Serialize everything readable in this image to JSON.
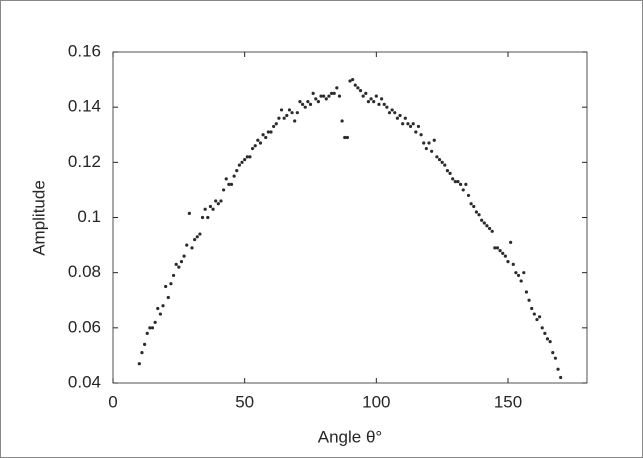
{
  "chart_data": {
    "type": "scatter",
    "xlabel": "Angle θ°",
    "ylabel": "Amplitude",
    "color": "#2b2b2b",
    "xlim": [
      0,
      180
    ],
    "xticks": [
      0,
      50,
      100,
      150
    ],
    "ylim": [
      0.04,
      0.16
    ],
    "yticks": [
      0.04,
      0.06,
      0.08,
      0.1,
      0.12,
      0.14,
      0.16
    ],
    "x": [
      10,
      11,
      12,
      13,
      14,
      15,
      16,
      17,
      18,
      19,
      20,
      21,
      22,
      23,
      24,
      25,
      26,
      27,
      28,
      29,
      30,
      31,
      32,
      33,
      34,
      35,
      36,
      37,
      38,
      39,
      40,
      41,
      42,
      43,
      44,
      45,
      46,
      47,
      48,
      49,
      50,
      51,
      52,
      53,
      54,
      55,
      56,
      57,
      58,
      59,
      60,
      61,
      62,
      63,
      64,
      65,
      66,
      67,
      68,
      69,
      70,
      71,
      72,
      73,
      74,
      75,
      76,
      77,
      78,
      79,
      80,
      81,
      82,
      83,
      84,
      85,
      86,
      87,
      88,
      89,
      90,
      91,
      92,
      93,
      94,
      95,
      96,
      97,
      98,
      99,
      100,
      101,
      102,
      103,
      104,
      105,
      106,
      107,
      108,
      109,
      110,
      111,
      112,
      113,
      114,
      115,
      116,
      117,
      118,
      119,
      120,
      121,
      122,
      123,
      124,
      125,
      126,
      127,
      128,
      129,
      130,
      131,
      132,
      133,
      134,
      135,
      136,
      137,
      138,
      139,
      140,
      141,
      142,
      143,
      144,
      145,
      146,
      147,
      148,
      149,
      150,
      151,
      152,
      153,
      154,
      155,
      156,
      157,
      158,
      159,
      160,
      161,
      162,
      163,
      164,
      165,
      166,
      167,
      168,
      169,
      170
    ],
    "y": [
      0.047,
      0.051,
      0.054,
      0.058,
      0.06,
      0.06,
      0.062,
      0.067,
      0.065,
      0.068,
      0.075,
      0.071,
      0.076,
      0.079,
      0.083,
      0.082,
      0.084,
      0.086,
      0.09,
      0.1015,
      0.089,
      0.092,
      0.093,
      0.094,
      0.1,
      0.103,
      0.1,
      0.104,
      0.103,
      0.106,
      0.105,
      0.106,
      0.11,
      0.114,
      0.112,
      0.112,
      0.115,
      0.117,
      0.119,
      0.12,
      0.121,
      0.122,
      0.122,
      0.125,
      0.126,
      0.128,
      0.127,
      0.13,
      0.129,
      0.131,
      0.131,
      0.133,
      0.134,
      0.136,
      0.139,
      0.136,
      0.137,
      0.139,
      0.138,
      0.135,
      0.138,
      0.142,
      0.141,
      0.14,
      0.142,
      0.141,
      0.145,
      0.143,
      0.142,
      0.144,
      0.144,
      0.143,
      0.144,
      0.145,
      0.145,
      0.147,
      0.144,
      0.135,
      0.129,
      0.129,
      0.1495,
      0.15,
      0.148,
      0.147,
      0.146,
      0.144,
      0.145,
      0.142,
      0.143,
      0.142,
      0.144,
      0.141,
      0.143,
      0.141,
      0.14,
      0.138,
      0.139,
      0.138,
      0.136,
      0.137,
      0.134,
      0.136,
      0.134,
      0.133,
      0.134,
      0.131,
      0.133,
      0.13,
      0.127,
      0.125,
      0.127,
      0.124,
      0.128,
      0.122,
      0.121,
      0.12,
      0.119,
      0.117,
      0.116,
      0.114,
      0.113,
      0.113,
      0.112,
      0.11,
      0.112,
      0.108,
      0.105,
      0.104,
      0.102,
      0.101,
      0.099,
      0.098,
      0.097,
      0.096,
      0.095,
      0.089,
      0.089,
      0.088,
      0.087,
      0.086,
      0.084,
      0.091,
      0.083,
      0.08,
      0.079,
      0.077,
      0.08,
      0.073,
      0.07,
      0.067,
      0.065,
      0.063,
      0.064,
      0.06,
      0.058,
      0.056,
      0.055,
      0.051,
      0.049,
      0.045,
      0.042
    ]
  }
}
